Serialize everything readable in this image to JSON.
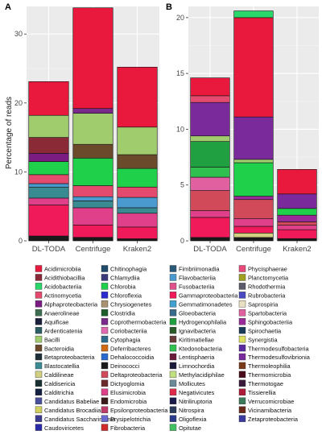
{
  "panel_labels": [
    "A",
    "B"
  ],
  "legend": {
    "items": [
      {
        "name": "Acidimicrobiia",
        "color": "#e8193c"
      },
      {
        "name": "Acidithiobacillia",
        "color": "#8b2a37"
      },
      {
        "name": "Acidobacteriia",
        "color": "#2bd66b"
      },
      {
        "name": "Actinomycetia",
        "color": "#e44a6d"
      },
      {
        "name": "Alphaproteobacteria",
        "color": "#7a1c82"
      },
      {
        "name": "Anaerolineae",
        "color": "#3d6e52"
      },
      {
        "name": "Aquificae",
        "color": "#1a1f3c"
      },
      {
        "name": "Ardenticatenia",
        "color": "#2c5e63"
      },
      {
        "name": "Bacilli",
        "color": "#a0cc6e"
      },
      {
        "name": "Bacteroidia",
        "color": "#6a4a2a"
      },
      {
        "name": "Betaproteobacteria",
        "color": "#1f2f3a"
      },
      {
        "name": "Blastocatellia",
        "color": "#3a8a92"
      },
      {
        "name": "Caldilineae",
        "color": "#d0d080"
      },
      {
        "name": "Caldisericia",
        "color": "#1a2f2f"
      },
      {
        "name": "Calditrichia",
        "color": "#142040"
      },
      {
        "name": "Candidatus Babeliae",
        "color": "#4a4f9a"
      },
      {
        "name": "Candidatus Brocadiia",
        "color": "#d0d060"
      },
      {
        "name": "Candidatus Saccharimonia",
        "color": "#3a3a90"
      },
      {
        "name": "Caudoviricetes",
        "color": "#2a2aa8"
      },
      {
        "name": "Chitinophagia",
        "color": "#1f4a6a"
      },
      {
        "name": "Chlamydiia",
        "color": "#3a3a7a"
      },
      {
        "name": "Chlorobia",
        "color": "#1fd14a"
      },
      {
        "name": "Chloroflexia",
        "color": "#2a2ad0"
      },
      {
        "name": "Chrysiogenetes",
        "color": "#a89070"
      },
      {
        "name": "Clostridia",
        "color": "#1c5e2a"
      },
      {
        "name": "Coprothermobacteria",
        "color": "#7a2a8a"
      },
      {
        "name": "Coriobacteriia",
        "color": "#e06ab0"
      },
      {
        "name": "Cytophagia",
        "color": "#2a6a8a"
      },
      {
        "name": "Deferribacteres",
        "color": "#d06a10"
      },
      {
        "name": "Dehalococcoidia",
        "color": "#2a6ad0"
      },
      {
        "name": "Deinococci",
        "color": "#1a1a1a"
      },
      {
        "name": "Deltaproteobacteria",
        "color": "#d04a5a"
      },
      {
        "name": "Dictyoglomia",
        "color": "#6a2a2a"
      },
      {
        "name": "Elusimicrobia",
        "color": "#e0408a"
      },
      {
        "name": "Endomicrobia",
        "color": "#3a1a1a"
      },
      {
        "name": "Epsilonproteobacteria",
        "color": "#c03a6a"
      },
      {
        "name": "Erysipelotrichia",
        "color": "#6a6ad0"
      },
      {
        "name": "Fibrobacteria",
        "color": "#d02a2a"
      },
      {
        "name": "Fimbriimonadia",
        "color": "#2a5a7a"
      },
      {
        "name": "Flavobacteriia",
        "color": "#4a9ad0"
      },
      {
        "name": "Fusobacteriia",
        "color": "#e0508a"
      },
      {
        "name": "Gammaproteobacteria",
        "color": "#f01a5a"
      },
      {
        "name": "Gemmatimonadetes",
        "color": "#40a0d0"
      },
      {
        "name": "Gloeobacteria",
        "color": "#3a6a8a"
      },
      {
        "name": "Hydrogenophilalia",
        "color": "#20a040"
      },
      {
        "name": "Ignavibacteria",
        "color": "#2a5a2a"
      },
      {
        "name": "Kiritimatiellae",
        "color": "#6a3a3a"
      },
      {
        "name": "Ktedonobacteria",
        "color": "#30c050"
      },
      {
        "name": "Lentisphaeria",
        "color": "#6a1a3a"
      },
      {
        "name": "Limnochordia",
        "color": "#1a1a3a"
      },
      {
        "name": "Methylacidiphilae",
        "color": "#c0e080"
      },
      {
        "name": "Mollicutes",
        "color": "#6a8a9a"
      },
      {
        "name": "Negativicutes",
        "color": "#e02a4a"
      },
      {
        "name": "Nitriliruptoria",
        "color": "#1a1a4a"
      },
      {
        "name": "Nitrospira",
        "color": "#2a3a5a"
      },
      {
        "name": "Oligoflexia",
        "color": "#2a3a8a"
      },
      {
        "name": "Opitutae",
        "color": "#40c060"
      },
      {
        "name": "Phycisphaerae",
        "color": "#ea4a7a"
      },
      {
        "name": "Planctomycetia",
        "color": "#a0a020"
      },
      {
        "name": "Rhodothermia",
        "color": "#5a5a6a"
      },
      {
        "name": "Rubrobacteria",
        "color": "#4a4ac0"
      },
      {
        "name": "Saprospiria",
        "color": "#e8e0c0"
      },
      {
        "name": "Spartobacteria",
        "color": "#e060a0"
      },
      {
        "name": "Sphingobacteriia",
        "color": "#9a2a9a"
      },
      {
        "name": "Spirochaetia",
        "color": "#1a3a5a"
      },
      {
        "name": "Synergistia",
        "color": "#e0e060"
      },
      {
        "name": "Thermodesulfobacteria",
        "color": "#5a2aa0"
      },
      {
        "name": "Thermodesulfovibrionia",
        "color": "#7a2a9a"
      },
      {
        "name": "Thermoleophilia",
        "color": "#7a3a1a"
      },
      {
        "name": "Thermomicrobia",
        "color": "#4a0a1a"
      },
      {
        "name": "Thermotogae",
        "color": "#3a1a3a"
      },
      {
        "name": "Tissierellia",
        "color": "#b01a3a"
      },
      {
        "name": "Verrucomicrobiae",
        "color": "#3a7a5a"
      },
      {
        "name": "Vicinamibacteria",
        "color": "#6a2a1a"
      },
      {
        "name": "Zetaproteobacteria",
        "color": "#3a3aa0"
      }
    ]
  },
  "chart_data": [
    {
      "type": "bar",
      "panel": "A",
      "stacked": true,
      "categories": [
        "DL-TODA",
        "Centrifuge",
        "Kraken2"
      ],
      "ylabel": "Percentage of reads",
      "ylim": [
        0,
        34
      ],
      "yticks": [
        0,
        10,
        20,
        30
      ],
      "grid": true,
      "series": [
        {
          "name": "Deinococci",
          "values": [
            0.7,
            0.5,
            0.3
          ]
        },
        {
          "name": "Gammaproteobacteria",
          "values": [
            4.5,
            1.8,
            1.7
          ]
        },
        {
          "name": "Elusimicrobia",
          "values": [
            1.0,
            2.5,
            2.0
          ]
        },
        {
          "name": "Blastocatellia",
          "values": [
            1.6,
            1.0,
            0.8
          ]
        },
        {
          "name": "Flavobacteriia",
          "values": [
            0.5,
            0.6,
            1.5
          ]
        },
        {
          "name": "Actinomycetia",
          "values": [
            1.3,
            1.6,
            1.5
          ]
        },
        {
          "name": "Chlorobia",
          "values": [
            1.9,
            4.0,
            2.7
          ]
        },
        {
          "name": "Bacteroidia",
          "values": [
            0,
            2.0,
            2.0
          ]
        },
        {
          "name": "Alphaproteobacteria",
          "values": [
            1.2,
            0,
            0
          ]
        },
        {
          "name": "Acidithiobacillia",
          "values": [
            2.3,
            0,
            0
          ]
        },
        {
          "name": "Bacilli",
          "values": [
            3.2,
            4.5,
            4.0
          ]
        },
        {
          "name": "Coprothermobacteria",
          "values": [
            0,
            0.7,
            0
          ]
        },
        {
          "name": "Acidimicrobiia",
          "values": [
            4.9,
            14.6,
            8.7
          ]
        }
      ]
    },
    {
      "type": "bar",
      "panel": "B",
      "stacked": true,
      "categories": [
        "DL-TODA",
        "Centrifuge",
        "Kraken2"
      ],
      "ylim": [
        0,
        21
      ],
      "yticks": [
        0,
        5,
        10,
        15,
        20
      ],
      "grid": true,
      "series": [
        {
          "name": "Deinococci",
          "values": [
            0.3,
            0.3,
            0.2
          ]
        },
        {
          "name": "Caldilineae",
          "values": [
            0,
            0.4,
            0
          ]
        },
        {
          "name": "Gammaproteobacteria",
          "values": [
            1.8,
            0.6,
            0.8
          ]
        },
        {
          "name": "Elusimicrobia",
          "values": [
            0.6,
            0.7,
            0.4
          ]
        },
        {
          "name": "Deltaproteobacteria",
          "values": [
            1.8,
            1.7,
            0.3
          ]
        },
        {
          "name": "Sphingobacteriia",
          "values": [
            0,
            0.3,
            0.6
          ]
        },
        {
          "name": "Chlorobia",
          "values": [
            0,
            3.0,
            0.6
          ]
        },
        {
          "name": "Spartobacteria",
          "values": [
            1.2,
            0,
            0
          ]
        },
        {
          "name": "Ktedonobacteria",
          "values": [
            0.9,
            0,
            0
          ]
        },
        {
          "name": "Hydrogenophilalia",
          "values": [
            2.3,
            0,
            0
          ]
        },
        {
          "name": "Bacilli",
          "values": [
            0.5,
            0.3,
            0
          ]
        },
        {
          "name": "Thermodesulfovibrionia",
          "values": [
            3.0,
            3.8,
            1.3
          ]
        },
        {
          "name": "Actinomycetia",
          "values": [
            0.6,
            0,
            0
          ]
        },
        {
          "name": "Acidimicrobiia",
          "values": [
            1.6,
            8.9,
            2.2
          ]
        },
        {
          "name": "Acidobacteriia",
          "values": [
            0,
            0.6,
            0
          ]
        }
      ]
    }
  ]
}
